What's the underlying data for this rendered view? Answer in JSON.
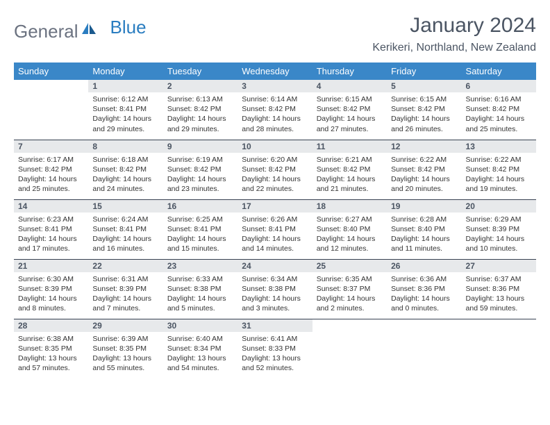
{
  "logo": {
    "text1": "General",
    "text2": "Blue"
  },
  "title": "January 2024",
  "location": "Kerikeri, Northland, New Zealand",
  "colors": {
    "header_bg": "#3a87c8",
    "daynum_bg": "#e7e9eb",
    "border": "#374151",
    "logo_gray": "#6b7280",
    "logo_blue": "#2a7dc0"
  },
  "day_headers": [
    "Sunday",
    "Monday",
    "Tuesday",
    "Wednesday",
    "Thursday",
    "Friday",
    "Saturday"
  ],
  "weeks": [
    [
      null,
      {
        "n": "1",
        "sr": "Sunrise: 6:12 AM",
        "ss": "Sunset: 8:41 PM",
        "dl1": "Daylight: 14 hours",
        "dl2": "and 29 minutes."
      },
      {
        "n": "2",
        "sr": "Sunrise: 6:13 AM",
        "ss": "Sunset: 8:42 PM",
        "dl1": "Daylight: 14 hours",
        "dl2": "and 29 minutes."
      },
      {
        "n": "3",
        "sr": "Sunrise: 6:14 AM",
        "ss": "Sunset: 8:42 PM",
        "dl1": "Daylight: 14 hours",
        "dl2": "and 28 minutes."
      },
      {
        "n": "4",
        "sr": "Sunrise: 6:15 AM",
        "ss": "Sunset: 8:42 PM",
        "dl1": "Daylight: 14 hours",
        "dl2": "and 27 minutes."
      },
      {
        "n": "5",
        "sr": "Sunrise: 6:15 AM",
        "ss": "Sunset: 8:42 PM",
        "dl1": "Daylight: 14 hours",
        "dl2": "and 26 minutes."
      },
      {
        "n": "6",
        "sr": "Sunrise: 6:16 AM",
        "ss": "Sunset: 8:42 PM",
        "dl1": "Daylight: 14 hours",
        "dl2": "and 25 minutes."
      }
    ],
    [
      {
        "n": "7",
        "sr": "Sunrise: 6:17 AM",
        "ss": "Sunset: 8:42 PM",
        "dl1": "Daylight: 14 hours",
        "dl2": "and 25 minutes."
      },
      {
        "n": "8",
        "sr": "Sunrise: 6:18 AM",
        "ss": "Sunset: 8:42 PM",
        "dl1": "Daylight: 14 hours",
        "dl2": "and 24 minutes."
      },
      {
        "n": "9",
        "sr": "Sunrise: 6:19 AM",
        "ss": "Sunset: 8:42 PM",
        "dl1": "Daylight: 14 hours",
        "dl2": "and 23 minutes."
      },
      {
        "n": "10",
        "sr": "Sunrise: 6:20 AM",
        "ss": "Sunset: 8:42 PM",
        "dl1": "Daylight: 14 hours",
        "dl2": "and 22 minutes."
      },
      {
        "n": "11",
        "sr": "Sunrise: 6:21 AM",
        "ss": "Sunset: 8:42 PM",
        "dl1": "Daylight: 14 hours",
        "dl2": "and 21 minutes."
      },
      {
        "n": "12",
        "sr": "Sunrise: 6:22 AM",
        "ss": "Sunset: 8:42 PM",
        "dl1": "Daylight: 14 hours",
        "dl2": "and 20 minutes."
      },
      {
        "n": "13",
        "sr": "Sunrise: 6:22 AM",
        "ss": "Sunset: 8:42 PM",
        "dl1": "Daylight: 14 hours",
        "dl2": "and 19 minutes."
      }
    ],
    [
      {
        "n": "14",
        "sr": "Sunrise: 6:23 AM",
        "ss": "Sunset: 8:41 PM",
        "dl1": "Daylight: 14 hours",
        "dl2": "and 17 minutes."
      },
      {
        "n": "15",
        "sr": "Sunrise: 6:24 AM",
        "ss": "Sunset: 8:41 PM",
        "dl1": "Daylight: 14 hours",
        "dl2": "and 16 minutes."
      },
      {
        "n": "16",
        "sr": "Sunrise: 6:25 AM",
        "ss": "Sunset: 8:41 PM",
        "dl1": "Daylight: 14 hours",
        "dl2": "and 15 minutes."
      },
      {
        "n": "17",
        "sr": "Sunrise: 6:26 AM",
        "ss": "Sunset: 8:41 PM",
        "dl1": "Daylight: 14 hours",
        "dl2": "and 14 minutes."
      },
      {
        "n": "18",
        "sr": "Sunrise: 6:27 AM",
        "ss": "Sunset: 8:40 PM",
        "dl1": "Daylight: 14 hours",
        "dl2": "and 12 minutes."
      },
      {
        "n": "19",
        "sr": "Sunrise: 6:28 AM",
        "ss": "Sunset: 8:40 PM",
        "dl1": "Daylight: 14 hours",
        "dl2": "and 11 minutes."
      },
      {
        "n": "20",
        "sr": "Sunrise: 6:29 AM",
        "ss": "Sunset: 8:39 PM",
        "dl1": "Daylight: 14 hours",
        "dl2": "and 10 minutes."
      }
    ],
    [
      {
        "n": "21",
        "sr": "Sunrise: 6:30 AM",
        "ss": "Sunset: 8:39 PM",
        "dl1": "Daylight: 14 hours",
        "dl2": "and 8 minutes."
      },
      {
        "n": "22",
        "sr": "Sunrise: 6:31 AM",
        "ss": "Sunset: 8:39 PM",
        "dl1": "Daylight: 14 hours",
        "dl2": "and 7 minutes."
      },
      {
        "n": "23",
        "sr": "Sunrise: 6:33 AM",
        "ss": "Sunset: 8:38 PM",
        "dl1": "Daylight: 14 hours",
        "dl2": "and 5 minutes."
      },
      {
        "n": "24",
        "sr": "Sunrise: 6:34 AM",
        "ss": "Sunset: 8:38 PM",
        "dl1": "Daylight: 14 hours",
        "dl2": "and 3 minutes."
      },
      {
        "n": "25",
        "sr": "Sunrise: 6:35 AM",
        "ss": "Sunset: 8:37 PM",
        "dl1": "Daylight: 14 hours",
        "dl2": "and 2 minutes."
      },
      {
        "n": "26",
        "sr": "Sunrise: 6:36 AM",
        "ss": "Sunset: 8:36 PM",
        "dl1": "Daylight: 14 hours",
        "dl2": "and 0 minutes."
      },
      {
        "n": "27",
        "sr": "Sunrise: 6:37 AM",
        "ss": "Sunset: 8:36 PM",
        "dl1": "Daylight: 13 hours",
        "dl2": "and 59 minutes."
      }
    ],
    [
      {
        "n": "28",
        "sr": "Sunrise: 6:38 AM",
        "ss": "Sunset: 8:35 PM",
        "dl1": "Daylight: 13 hours",
        "dl2": "and 57 minutes."
      },
      {
        "n": "29",
        "sr": "Sunrise: 6:39 AM",
        "ss": "Sunset: 8:35 PM",
        "dl1": "Daylight: 13 hours",
        "dl2": "and 55 minutes."
      },
      {
        "n": "30",
        "sr": "Sunrise: 6:40 AM",
        "ss": "Sunset: 8:34 PM",
        "dl1": "Daylight: 13 hours",
        "dl2": "and 54 minutes."
      },
      {
        "n": "31",
        "sr": "Sunrise: 6:41 AM",
        "ss": "Sunset: 8:33 PM",
        "dl1": "Daylight: 13 hours",
        "dl2": "and 52 minutes."
      },
      null,
      null,
      null
    ]
  ]
}
